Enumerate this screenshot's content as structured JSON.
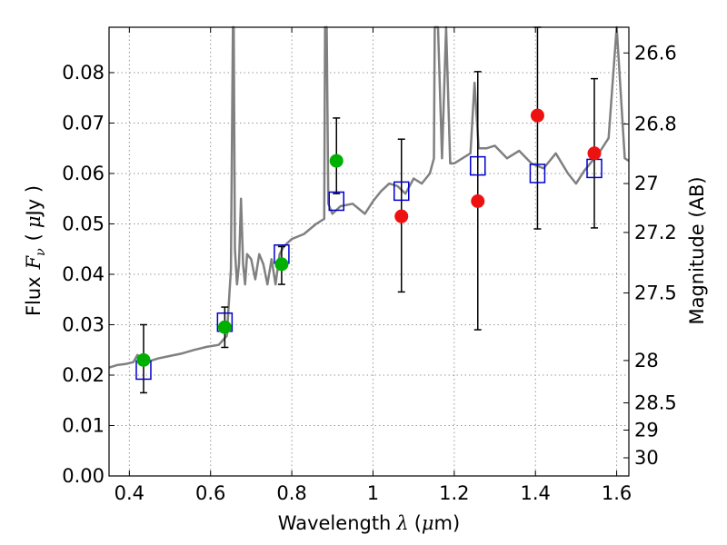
{
  "chart_data": {
    "type": "line",
    "xlabel_prefix": "Wavelength",
    "xlabel_symbol": "λ",
    "xlabel_unit_open": "(",
    "xlabel_unit_mu": "μ",
    "xlabel_unit_rest": "m)",
    "ylabel_prefix": "Flux",
    "ylabel_symbol": "F",
    "ylabel_sub": "ν",
    "ylabel_unit_open": "(",
    "ylabel_unit_mu": "μ",
    "ylabel_unit_rest": "Jy )",
    "y2label": "Magnitude (AB)",
    "xlim": [
      0.35,
      1.63
    ],
    "ylim": [
      0.0,
      0.089
    ],
    "grid": true,
    "x_ticks": [
      0.4,
      0.6,
      0.8,
      1.0,
      1.2,
      1.4,
      1.6
    ],
    "x_tick_labels": [
      "0.4",
      "0.6",
      "0.8",
      "1",
      "1.2",
      "1.4",
      "1.6"
    ],
    "y_ticks": [
      0.0,
      0.01,
      0.02,
      0.03,
      0.04,
      0.05,
      0.06,
      0.07,
      0.08
    ],
    "y_tick_labels": [
      "0.00",
      "0.01",
      "0.02",
      "0.03",
      "0.04",
      "0.05",
      "0.06",
      "0.07",
      "0.08"
    ],
    "y2_ticks": [
      {
        "label": "26.6",
        "flux": 0.0839
      },
      {
        "label": "26.8",
        "flux": 0.0698
      },
      {
        "label": "27",
        "flux": 0.058
      },
      {
        "label": "27.2",
        "flux": 0.0483
      },
      {
        "label": "27.5",
        "flux": 0.0363
      },
      {
        "label": "28",
        "flux": 0.0229
      },
      {
        "label": "28.5",
        "flux": 0.0145
      },
      {
        "label": "29",
        "flux": 0.0091
      },
      {
        "label": "30",
        "flux": 0.0036
      }
    ],
    "colors": {
      "model": "#808080",
      "model_points": "#0000cc",
      "detections": "#00b000",
      "nondetections": "#ee1111",
      "errorbars": "#000000",
      "grid": "#999999"
    },
    "series": [
      {
        "kind": "line",
        "x": [
          0.35,
          0.37,
          0.39,
          0.41,
          0.42,
          0.44,
          0.47,
          0.5,
          0.53,
          0.56,
          0.59,
          0.62,
          0.64,
          0.65,
          0.655,
          0.657,
          0.66,
          0.665,
          0.67,
          0.675,
          0.68,
          0.685,
          0.69,
          0.7,
          0.71,
          0.72,
          0.73,
          0.74,
          0.75,
          0.76,
          0.77,
          0.78,
          0.8,
          0.83,
          0.86,
          0.88,
          0.882,
          0.886,
          0.89,
          0.9,
          0.92,
          0.95,
          0.98,
          1.0,
          1.02,
          1.04,
          1.06,
          1.08,
          1.1,
          1.12,
          1.14,
          1.15,
          1.152,
          1.16,
          1.17,
          1.18,
          1.19,
          1.2,
          1.22,
          1.24,
          1.25,
          1.26,
          1.28,
          1.3,
          1.33,
          1.36,
          1.39,
          1.42,
          1.45,
          1.48,
          1.5,
          1.52,
          1.54,
          1.56,
          1.58,
          1.6,
          1.62,
          1.63
        ],
        "y": [
          0.0215,
          0.022,
          0.0222,
          0.0226,
          0.024,
          0.0225,
          0.0233,
          0.0238,
          0.0243,
          0.025,
          0.0256,
          0.026,
          0.0278,
          0.041,
          0.089,
          0.089,
          0.045,
          0.038,
          0.042,
          0.055,
          0.042,
          0.038,
          0.044,
          0.043,
          0.039,
          0.044,
          0.042,
          0.038,
          0.043,
          0.038,
          0.044,
          0.0455,
          0.047,
          0.048,
          0.05,
          0.051,
          0.089,
          0.089,
          0.054,
          0.052,
          0.0535,
          0.054,
          0.052,
          0.0545,
          0.0565,
          0.058,
          0.0575,
          0.056,
          0.059,
          0.058,
          0.06,
          0.063,
          0.089,
          0.089,
          0.063,
          0.089,
          0.062,
          0.062,
          0.063,
          0.064,
          0.078,
          0.065,
          0.065,
          0.0655,
          0.063,
          0.0645,
          0.062,
          0.061,
          0.064,
          0.06,
          0.058,
          0.0605,
          0.0625,
          0.0645,
          0.067,
          0.089,
          0.063,
          0.0625
        ]
      },
      {
        "kind": "model_points",
        "x": [
          0.435,
          0.635,
          0.775,
          0.91,
          1.07,
          1.258,
          1.405,
          1.545
        ],
        "y": [
          0.021,
          0.0305,
          0.044,
          0.0545,
          0.0565,
          0.0615,
          0.06,
          0.061
        ]
      },
      {
        "kind": "detections",
        "x": [
          0.435,
          0.635,
          0.775,
          0.91
        ],
        "y": [
          0.023,
          0.0295,
          0.042,
          0.0625
        ],
        "err_low": [
          0.0165,
          0.0255,
          0.038,
          0.056
        ],
        "err_high": [
          0.03,
          0.0335,
          0.0455,
          0.071
        ]
      },
      {
        "kind": "nondetections",
        "x": [
          1.07,
          1.258,
          1.405,
          1.545
        ],
        "y": [
          0.0515,
          0.0545,
          0.0715,
          0.064
        ],
        "err_low": [
          0.0365,
          0.029,
          0.049,
          0.0492
        ],
        "err_high": [
          0.0668,
          0.0802,
          0.089,
          0.0788
        ]
      }
    ]
  }
}
